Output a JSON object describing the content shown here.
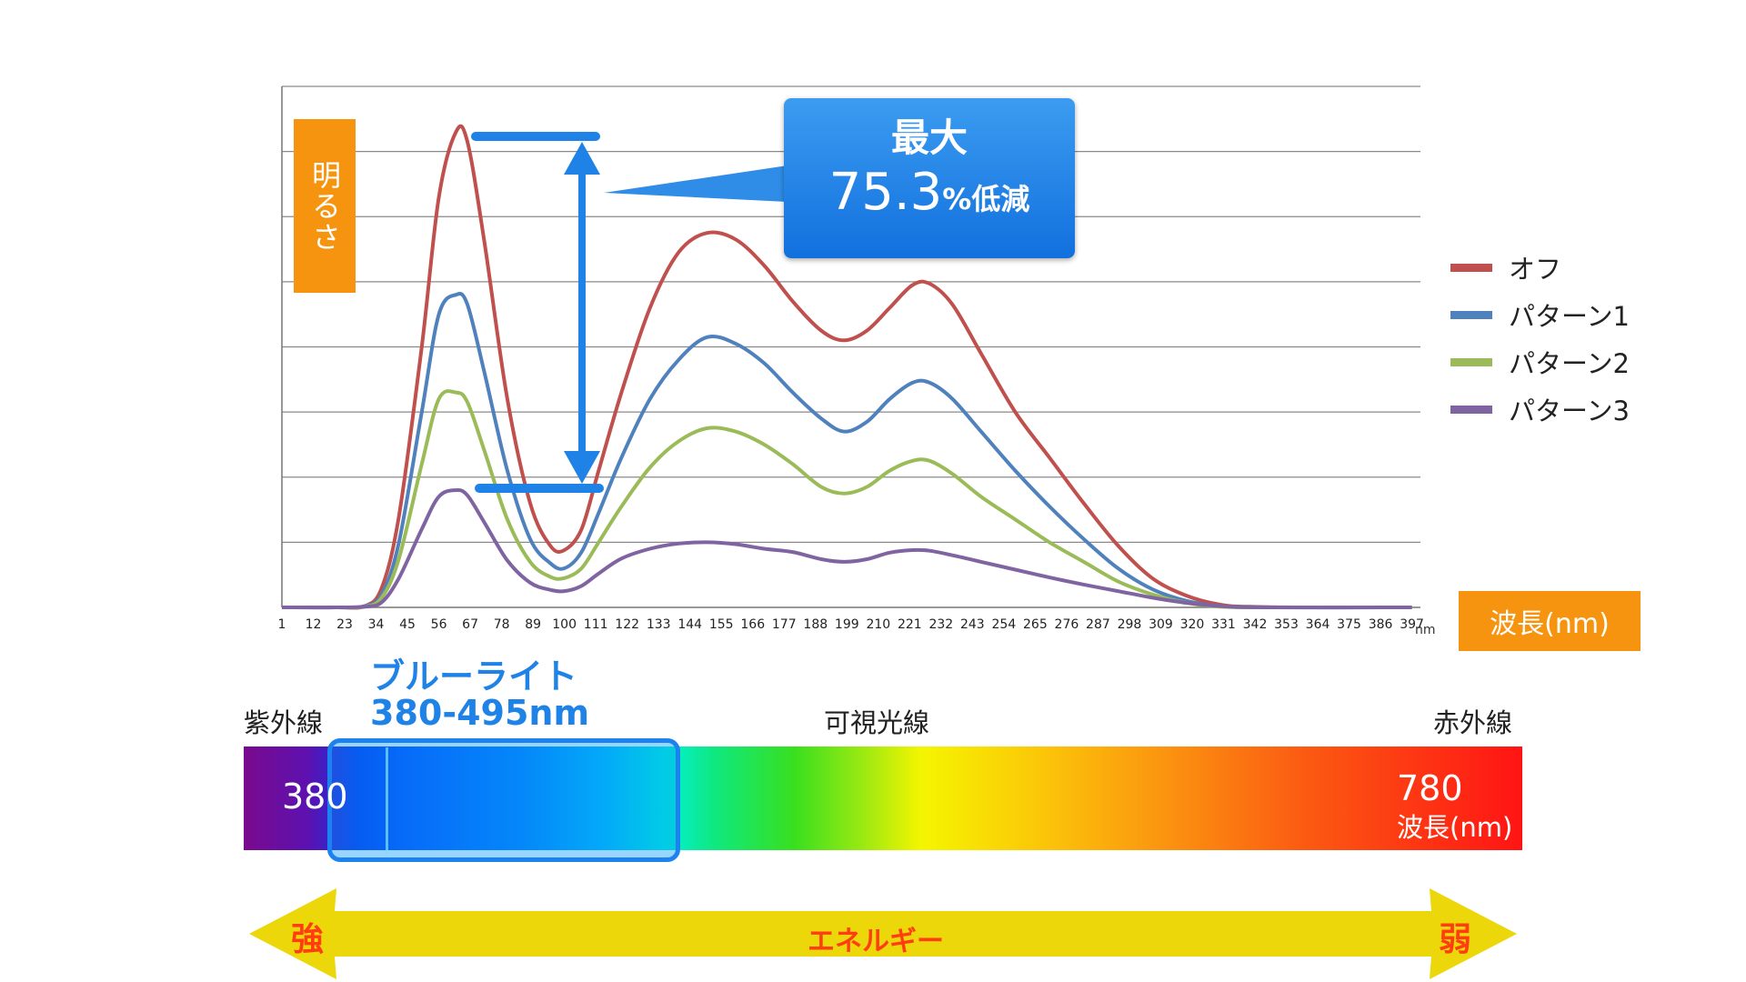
{
  "chart_data": {
    "type": "line",
    "title": "",
    "ylabel": "明るさ",
    "xlabel": "波長(nm)",
    "x_unit": "nm",
    "x_ticks": [
      "1",
      "12",
      "23",
      "34",
      "45",
      "56",
      "67",
      "78",
      "89",
      "100",
      "111",
      "122",
      "133",
      "144",
      "155",
      "166",
      "177",
      "188",
      "199",
      "210",
      "221",
      "232",
      "243",
      "254",
      "265",
      "276",
      "287",
      "298",
      "309",
      "320",
      "331",
      "342",
      "353",
      "364",
      "375",
      "386",
      "397"
    ],
    "xlim": [
      1,
      400
    ],
    "ylim": [
      0,
      8
    ],
    "grid": true,
    "legend_position": "right",
    "series": [
      {
        "name": "オフ",
        "color": "#c0504d",
        "points": [
          [
            1,
            0
          ],
          [
            20,
            0
          ],
          [
            30,
            0.02
          ],
          [
            36,
            0.3
          ],
          [
            42,
            1.4
          ],
          [
            50,
            4.0
          ],
          [
            56,
            6.3
          ],
          [
            62,
            7.3
          ],
          [
            66,
            7.15
          ],
          [
            72,
            5.6
          ],
          [
            80,
            3.2
          ],
          [
            88,
            1.6
          ],
          [
            95,
            0.95
          ],
          [
            100,
            0.88
          ],
          [
            106,
            1.2
          ],
          [
            112,
            2.1
          ],
          [
            120,
            3.3
          ],
          [
            130,
            4.6
          ],
          [
            140,
            5.45
          ],
          [
            150,
            5.75
          ],
          [
            160,
            5.65
          ],
          [
            170,
            5.25
          ],
          [
            180,
            4.7
          ],
          [
            190,
            4.25
          ],
          [
            198,
            4.1
          ],
          [
            206,
            4.25
          ],
          [
            214,
            4.6
          ],
          [
            222,
            4.95
          ],
          [
            228,
            4.97
          ],
          [
            236,
            4.65
          ],
          [
            246,
            3.9
          ],
          [
            258,
            3.0
          ],
          [
            270,
            2.3
          ],
          [
            282,
            1.6
          ],
          [
            294,
            0.95
          ],
          [
            306,
            0.45
          ],
          [
            318,
            0.18
          ],
          [
            330,
            0.04
          ],
          [
            340,
            0.01
          ],
          [
            360,
            0
          ],
          [
            397,
            0
          ]
        ]
      },
      {
        "name": "パターン1",
        "color": "#4f81bd",
        "points": [
          [
            1,
            0
          ],
          [
            20,
            0
          ],
          [
            30,
            0.02
          ],
          [
            36,
            0.2
          ],
          [
            42,
            1.0
          ],
          [
            50,
            3.0
          ],
          [
            56,
            4.5
          ],
          [
            62,
            4.8
          ],
          [
            66,
            4.65
          ],
          [
            72,
            3.6
          ],
          [
            80,
            2.1
          ],
          [
            88,
            1.05
          ],
          [
            95,
            0.68
          ],
          [
            100,
            0.6
          ],
          [
            106,
            0.85
          ],
          [
            112,
            1.45
          ],
          [
            120,
            2.3
          ],
          [
            130,
            3.2
          ],
          [
            140,
            3.8
          ],
          [
            150,
            4.15
          ],
          [
            160,
            4.05
          ],
          [
            170,
            3.75
          ],
          [
            180,
            3.3
          ],
          [
            190,
            2.9
          ],
          [
            198,
            2.7
          ],
          [
            206,
            2.85
          ],
          [
            214,
            3.2
          ],
          [
            222,
            3.45
          ],
          [
            228,
            3.45
          ],
          [
            236,
            3.2
          ],
          [
            246,
            2.7
          ],
          [
            258,
            2.1
          ],
          [
            270,
            1.55
          ],
          [
            282,
            1.05
          ],
          [
            294,
            0.6
          ],
          [
            306,
            0.28
          ],
          [
            318,
            0.1
          ],
          [
            330,
            0.02
          ],
          [
            345,
            0
          ],
          [
            397,
            0
          ]
        ]
      },
      {
        "name": "パターン2",
        "color": "#9bbb59",
        "points": [
          [
            1,
            0
          ],
          [
            20,
            0
          ],
          [
            30,
            0.01
          ],
          [
            36,
            0.15
          ],
          [
            42,
            0.75
          ],
          [
            50,
            2.2
          ],
          [
            56,
            3.2
          ],
          [
            62,
            3.3
          ],
          [
            66,
            3.15
          ],
          [
            72,
            2.4
          ],
          [
            80,
            1.35
          ],
          [
            88,
            0.7
          ],
          [
            95,
            0.47
          ],
          [
            100,
            0.45
          ],
          [
            106,
            0.6
          ],
          [
            112,
            1.0
          ],
          [
            120,
            1.55
          ],
          [
            130,
            2.15
          ],
          [
            140,
            2.55
          ],
          [
            150,
            2.75
          ],
          [
            160,
            2.7
          ],
          [
            170,
            2.5
          ],
          [
            180,
            2.2
          ],
          [
            190,
            1.85
          ],
          [
            198,
            1.75
          ],
          [
            206,
            1.85
          ],
          [
            214,
            2.1
          ],
          [
            222,
            2.25
          ],
          [
            228,
            2.25
          ],
          [
            236,
            2.05
          ],
          [
            246,
            1.7
          ],
          [
            258,
            1.35
          ],
          [
            270,
            1.0
          ],
          [
            282,
            0.7
          ],
          [
            294,
            0.4
          ],
          [
            306,
            0.2
          ],
          [
            318,
            0.07
          ],
          [
            330,
            0.01
          ],
          [
            345,
            0
          ],
          [
            397,
            0
          ]
        ]
      },
      {
        "name": "パターン3",
        "color": "#8064a2",
        "points": [
          [
            1,
            0
          ],
          [
            20,
            0
          ],
          [
            30,
            0.01
          ],
          [
            36,
            0.08
          ],
          [
            42,
            0.45
          ],
          [
            50,
            1.2
          ],
          [
            56,
            1.7
          ],
          [
            62,
            1.8
          ],
          [
            66,
            1.72
          ],
          [
            72,
            1.3
          ],
          [
            80,
            0.72
          ],
          [
            88,
            0.38
          ],
          [
            95,
            0.27
          ],
          [
            100,
            0.25
          ],
          [
            106,
            0.33
          ],
          [
            112,
            0.52
          ],
          [
            120,
            0.75
          ],
          [
            130,
            0.9
          ],
          [
            140,
            0.98
          ],
          [
            150,
            1.0
          ],
          [
            160,
            0.97
          ],
          [
            170,
            0.9
          ],
          [
            180,
            0.85
          ],
          [
            190,
            0.74
          ],
          [
            198,
            0.7
          ],
          [
            206,
            0.74
          ],
          [
            214,
            0.84
          ],
          [
            222,
            0.88
          ],
          [
            228,
            0.87
          ],
          [
            236,
            0.8
          ],
          [
            246,
            0.7
          ],
          [
            258,
            0.58
          ],
          [
            270,
            0.46
          ],
          [
            282,
            0.35
          ],
          [
            294,
            0.25
          ],
          [
            306,
            0.15
          ],
          [
            318,
            0.07
          ],
          [
            330,
            0.02
          ],
          [
            345,
            0
          ],
          [
            397,
            0
          ]
        ]
      }
    ],
    "annotation": {
      "line1": "最大",
      "value": "75.3",
      "suffix": "%低減"
    }
  },
  "spectrum": {
    "uv_label": "紫外線",
    "visible_label": "可視光線",
    "ir_label": "赤外線",
    "bluelight_title": "ブルーライト",
    "bluelight_range": "380-495nm",
    "start_value": "380",
    "end_value": "780",
    "end_unit": "波長(nm)"
  },
  "energy": {
    "strong": "強",
    "label": "エネルギー",
    "weak": "弱"
  },
  "colors": {
    "badge": "#f7940f",
    "bluelight": "#1e82e6",
    "energy_arrow": "#ebd70a",
    "energy_text": "#ff3d10"
  }
}
